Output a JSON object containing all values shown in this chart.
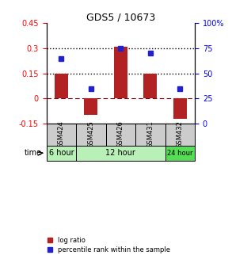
{
  "title": "GDS5 / 10673",
  "samples": [
    "GSM424",
    "GSM425",
    "GSM426",
    "GSM431",
    "GSM432"
  ],
  "log_ratio": [
    0.15,
    -0.1,
    0.31,
    0.15,
    -0.12
  ],
  "percentile_rank": [
    65,
    35,
    75,
    70,
    35
  ],
  "ylim_left": [
    -0.15,
    0.45
  ],
  "ylim_right": [
    0,
    100
  ],
  "yticks_left": [
    -0.15,
    0,
    0.15,
    0.3,
    0.45
  ],
  "ytick_labels_left": [
    "-0.15",
    "0",
    "0.15",
    "0.3",
    "0.45"
  ],
  "yticks_right": [
    0,
    25,
    50,
    75,
    100
  ],
  "ytick_labels_right": [
    "0",
    "25",
    "50",
    "75",
    "100%"
  ],
  "hlines_dotted": [
    0.15,
    0.3
  ],
  "hline_dashed": 0,
  "bar_color": "#b22222",
  "dot_color": "#2222cc",
  "bar_width": 0.45,
  "time_labels": [
    "6 hour",
    "12 hour",
    "24 hour"
  ],
  "time_groups": [
    [
      0
    ],
    [
      1,
      2,
      3
    ],
    [
      4
    ]
  ],
  "time_color_6": "#b8f0b8",
  "time_color_12": "#b8f0b8",
  "time_color_24": "#55dd55",
  "sample_bg": "#cccccc",
  "legend_bar_label": "log ratio",
  "legend_dot_label": "percentile rank within the sample",
  "xlabel_time": "time"
}
